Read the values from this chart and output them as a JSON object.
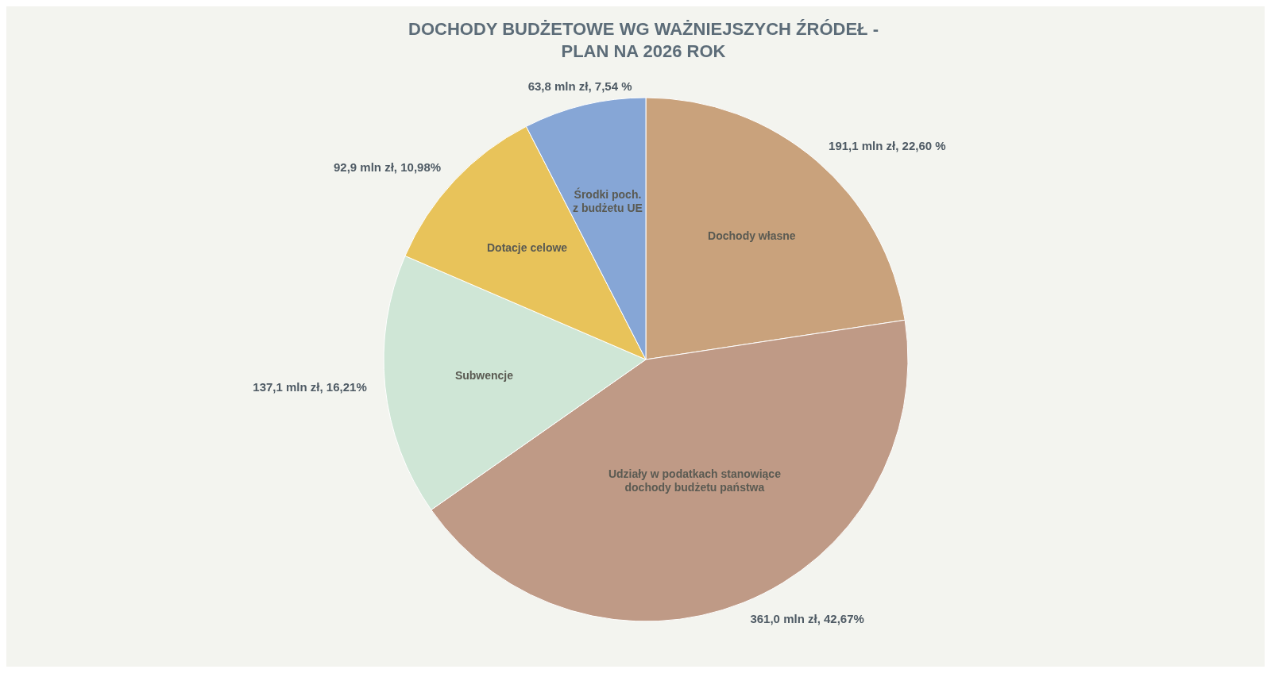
{
  "chart_data": {
    "type": "pie",
    "title": "DOCHODY BUDŻETOWE WG WAŻNIEJSZYCH ŹRÓDEŁ - PLAN NA 2026 ROK",
    "categories": [
      "Dochody własne",
      "Udziały w podatkach stanowiące dochody budżetu państwa",
      "Subwencje",
      "Dotacje celowe",
      "Środki poch. z budżetu UE"
    ],
    "values": [
      191.1,
      361.0,
      137.1,
      92.9,
      63.8
    ],
    "value_labels": [
      "191,1 mln zł, 22,60 %",
      "361,0 mln zł, 42,67%",
      "137,1 mln zł, 16,21%",
      "92,9 mln zł, 10,98%",
      "63,8 mln zł, 7,54 %"
    ],
    "colors": [
      "#c9a27c",
      "#bf9a86",
      "#cfe6d6",
      "#e8c35a",
      "#86a6d6"
    ]
  }
}
